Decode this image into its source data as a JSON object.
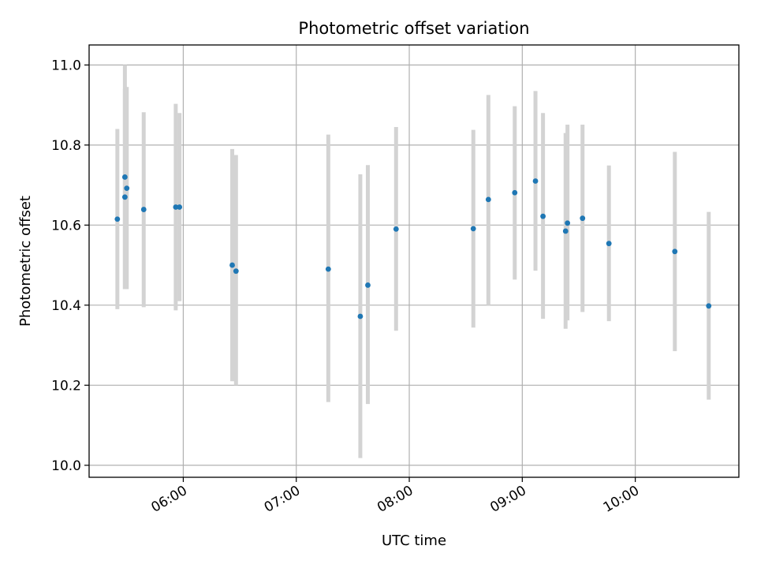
{
  "chart_data": {
    "type": "scatter",
    "title": "Photometric offset variation",
    "xlabel": "UTC time",
    "ylabel": "Photometric offset",
    "x_axis": "time",
    "xlim": [
      "05:10",
      "10:55"
    ],
    "ylim": [
      9.97,
      11.05
    ],
    "x_ticks": [
      "06:00",
      "07:00",
      "08:00",
      "09:00",
      "10:00"
    ],
    "y_ticks": [
      "10.0",
      "10.2",
      "10.4",
      "10.6",
      "10.8",
      "11.0"
    ],
    "grid": true,
    "colors": {
      "point": "#1f77b4",
      "errorbar": "#d3d3d3"
    },
    "points": [
      {
        "x": "05:25",
        "y": 10.615,
        "err_low": 10.39,
        "err_high": 10.84
      },
      {
        "x": "05:29",
        "y": 10.72,
        "err_low": 10.44,
        "err_high": 11.0
      },
      {
        "x": "05:29",
        "y": 10.67,
        "err_low": 10.44,
        "err_high": 10.94
      },
      {
        "x": "05:30",
        "y": 10.692,
        "err_low": 10.44,
        "err_high": 10.945
      },
      {
        "x": "05:39",
        "y": 10.639,
        "err_low": 10.395,
        "err_high": 10.882
      },
      {
        "x": "05:56",
        "y": 10.645,
        "err_low": 10.387,
        "err_high": 10.903
      },
      {
        "x": "05:58",
        "y": 10.645,
        "err_low": 10.41,
        "err_high": 10.88
      },
      {
        "x": "06:26",
        "y": 10.5,
        "err_low": 10.21,
        "err_high": 10.79
      },
      {
        "x": "06:28",
        "y": 10.485,
        "err_low": 10.2,
        "err_high": 10.775
      },
      {
        "x": "07:17",
        "y": 10.49,
        "err_low": 10.158,
        "err_high": 10.826
      },
      {
        "x": "07:34",
        "y": 10.372,
        "err_low": 10.018,
        "err_high": 10.727
      },
      {
        "x": "07:38",
        "y": 10.45,
        "err_low": 10.153,
        "err_high": 10.75
      },
      {
        "x": "07:53",
        "y": 10.59,
        "err_low": 10.336,
        "err_high": 10.845
      },
      {
        "x": "08:34",
        "y": 10.591,
        "err_low": 10.344,
        "err_high": 10.838
      },
      {
        "x": "08:42",
        "y": 10.664,
        "err_low": 10.4,
        "err_high": 10.925
      },
      {
        "x": "08:56",
        "y": 10.681,
        "err_low": 10.464,
        "err_high": 10.897
      },
      {
        "x": "09:07",
        "y": 10.71,
        "err_low": 10.486,
        "err_high": 10.935
      },
      {
        "x": "09:11",
        "y": 10.622,
        "err_low": 10.366,
        "err_high": 10.88
      },
      {
        "x": "09:23",
        "y": 10.585,
        "err_low": 10.341,
        "err_high": 10.83
      },
      {
        "x": "09:24",
        "y": 10.605,
        "err_low": 10.362,
        "err_high": 10.851
      },
      {
        "x": "09:32",
        "y": 10.617,
        "err_low": 10.383,
        "err_high": 10.851
      },
      {
        "x": "09:46",
        "y": 10.554,
        "err_low": 10.36,
        "err_high": 10.749
      },
      {
        "x": "10:21",
        "y": 10.534,
        "err_low": 10.285,
        "err_high": 10.783
      },
      {
        "x": "10:39",
        "y": 10.398,
        "err_low": 10.164,
        "err_high": 10.633
      }
    ]
  }
}
